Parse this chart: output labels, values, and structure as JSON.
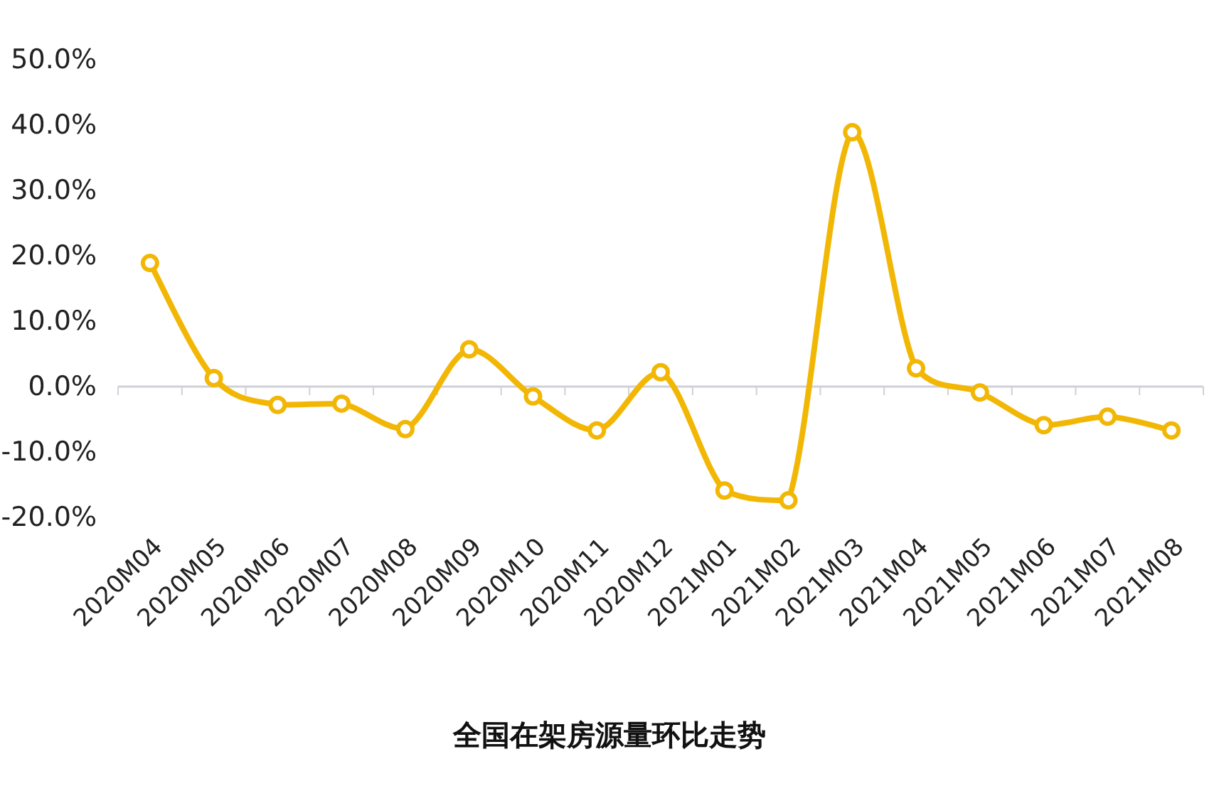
{
  "chart_data": {
    "type": "line",
    "title": "全国在架房源量环比走势",
    "categories": [
      "2020M04",
      "2020M05",
      "2020M06",
      "2020M07",
      "2020M08",
      "2020M09",
      "2020M10",
      "2020M11",
      "2020M12",
      "2021M01",
      "2021M02",
      "2021M03",
      "2021M04",
      "2021M05",
      "2021M06",
      "2021M07",
      "2021M08"
    ],
    "series": [
      {
        "color": "#f2b705",
        "values": [
          18.9,
          1.3,
          -2.8,
          -2.6,
          -6.5,
          5.7,
          -1.5,
          -6.7,
          2.2,
          -15.9,
          -17.4,
          38.9,
          2.8,
          -0.9,
          -5.9,
          -4.6,
          -6.7
        ]
      }
    ],
    "ylim": [
      -20,
      50
    ],
    "yticks": [
      {
        "value": -20,
        "label": "-20.0%"
      },
      {
        "value": -10,
        "label": "-10.0%"
      },
      {
        "value": 0,
        "label": "0.0%"
      },
      {
        "value": 10,
        "label": "10.0%"
      },
      {
        "value": 20,
        "label": "20.0%"
      },
      {
        "value": 30,
        "label": "30.0%"
      },
      {
        "value": 40,
        "label": "40.0%"
      },
      {
        "value": 50,
        "label": "50.0%"
      }
    ],
    "marker": "circle",
    "line_style": "solid"
  }
}
